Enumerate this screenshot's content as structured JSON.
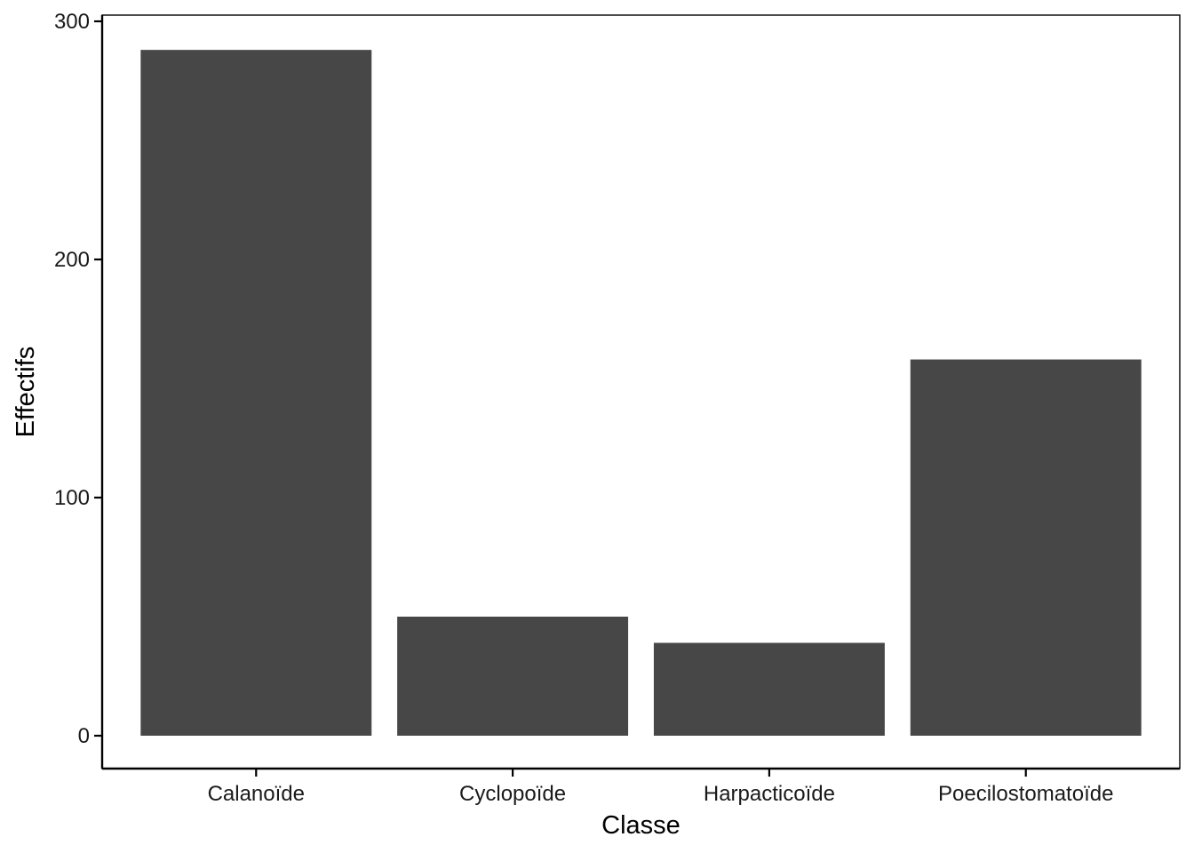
{
  "chart_data": {
    "type": "bar",
    "title": "",
    "xlabel": "Classe",
    "ylabel": "Effectifs",
    "categories": [
      "Calanoïde",
      "Cyclopoïde",
      "Harpacticoïde",
      "Poecilostomatoïde"
    ],
    "values": [
      288,
      50,
      39,
      158
    ],
    "ylim": [
      0,
      300
    ],
    "yticks": [
      0,
      100,
      200,
      300
    ],
    "ytick_labels": [
      "0",
      "100",
      "200",
      "300"
    ],
    "grid": false,
    "legend": "none",
    "bar_color": "#474747",
    "axis_color": "#000000",
    "background": "#ffffff"
  }
}
